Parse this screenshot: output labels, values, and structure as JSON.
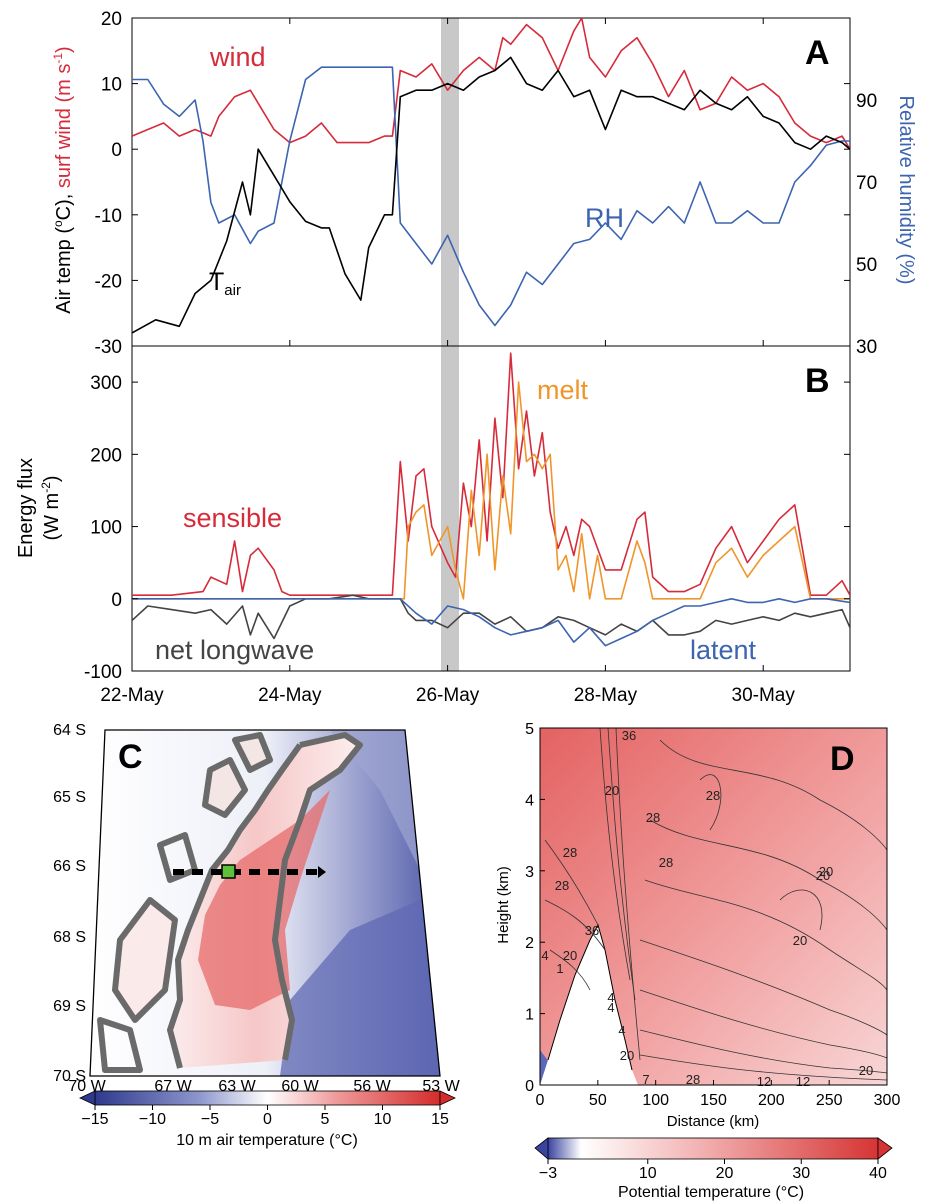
{
  "colors": {
    "wind": "#d62b3a",
    "rh": "#3c64b0",
    "tair": "#000000",
    "sensible": "#d62b3a",
    "melt": "#f0952a",
    "latent": "#3c64b0",
    "longwave": "#444444",
    "shade": "#c8c8c8",
    "warm": "#e04848",
    "cold": "#3a449a",
    "coast": "#6a6a6a"
  },
  "chart_data": [
    {
      "panel": "A",
      "type": "line",
      "ylabel_parts": [
        "Air temp (",
        "o",
        "C), ",
        "surf wind (m s",
        "-1",
        ")"
      ],
      "y2label": "Relative humidity (%)",
      "ylim": [
        -30,
        20
      ],
      "y2lim": [
        30,
        110
      ],
      "yticks": [
        -30,
        -20,
        -10,
        0,
        10,
        20
      ],
      "y2ticks": [
        30,
        50,
        70,
        90
      ],
      "xlim": [
        0,
        9.1
      ],
      "x_day0": "22-May",
      "shaded_span_days": [
        3.9,
        4.1
      ],
      "annotations": [
        {
          "text": "wind",
          "color_key": "wind"
        },
        {
          "text": "RH",
          "color_key": "rh"
        },
        {
          "text": "T",
          "sub": "air",
          "color_key": "tair"
        }
      ],
      "series": [
        {
          "name": "wind",
          "axis": "left",
          "color_key": "wind",
          "x": [
            0,
            0.2,
            0.4,
            0.6,
            0.8,
            1.0,
            1.1,
            1.3,
            1.5,
            1.6,
            1.8,
            2.0,
            2.2,
            2.4,
            2.6,
            2.8,
            3.0,
            3.2,
            3.3,
            3.4,
            3.6,
            3.8,
            4.0,
            4.2,
            4.4,
            4.6,
            4.7,
            4.8,
            5.0,
            5.2,
            5.4,
            5.6,
            5.7,
            5.8,
            6.0,
            6.2,
            6.4,
            6.6,
            6.8,
            7.0,
            7.2,
            7.4,
            7.6,
            7.8,
            8.0,
            8.2,
            8.4,
            8.6,
            8.8,
            9.0,
            9.1
          ],
          "values": [
            2,
            3,
            4,
            2,
            3,
            2,
            5,
            8,
            9,
            7,
            3,
            1,
            2,
            4,
            1,
            1,
            1,
            2,
            2,
            12,
            11,
            13,
            9,
            12,
            14,
            12,
            17,
            16,
            19,
            17,
            12,
            18,
            20,
            14,
            11,
            15,
            17,
            13,
            8,
            12,
            6,
            7,
            11,
            9,
            10,
            8,
            4,
            2,
            1,
            2,
            0
          ]
        },
        {
          "name": "RH",
          "axis": "right",
          "color_key": "rh",
          "x": [
            0,
            0.2,
            0.4,
            0.6,
            0.8,
            0.9,
            1.0,
            1.1,
            1.3,
            1.5,
            1.6,
            1.8,
            2.0,
            2.2,
            2.4,
            2.6,
            2.8,
            3.0,
            3.2,
            3.3,
            3.4,
            3.6,
            3.8,
            4.0,
            4.2,
            4.4,
            4.6,
            4.8,
            5.0,
            5.2,
            5.4,
            5.6,
            5.8,
            6.0,
            6.2,
            6.4,
            6.6,
            6.8,
            7.0,
            7.2,
            7.4,
            7.6,
            7.8,
            8.0,
            8.2,
            8.4,
            8.6,
            8.8,
            9.0,
            9.1
          ],
          "values": [
            95,
            95,
            89,
            86,
            90,
            80,
            65,
            60,
            62,
            55,
            58,
            60,
            80,
            95,
            98,
            98,
            98,
            98,
            98,
            98,
            60,
            55,
            50,
            57,
            48,
            40,
            35,
            40,
            48,
            45,
            50,
            55,
            56,
            60,
            56,
            63,
            60,
            64,
            60,
            70,
            60,
            60,
            63,
            60,
            60,
            70,
            74,
            79,
            80,
            80
          ]
        },
        {
          "name": "Tair",
          "axis": "left",
          "color_key": "tair",
          "x": [
            0,
            0.3,
            0.6,
            0.8,
            1.0,
            1.2,
            1.4,
            1.5,
            1.6,
            1.8,
            2.0,
            2.2,
            2.4,
            2.5,
            2.7,
            2.9,
            3.0,
            3.2,
            3.3,
            3.4,
            3.6,
            3.8,
            4.0,
            4.2,
            4.4,
            4.6,
            4.8,
            5.0,
            5.2,
            5.4,
            5.6,
            5.8,
            6.0,
            6.2,
            6.4,
            6.6,
            6.8,
            7.0,
            7.2,
            7.4,
            7.6,
            7.8,
            8.0,
            8.2,
            8.4,
            8.6,
            8.8,
            9.0,
            9.1
          ],
          "values": [
            -28,
            -26,
            -27,
            -22,
            -20,
            -14,
            -5,
            -10,
            0,
            -4,
            -8,
            -11,
            -12,
            -12,
            -19,
            -23,
            -15,
            -10,
            -10,
            8,
            9,
            9,
            10,
            9,
            11,
            12,
            14,
            10,
            9,
            12,
            8,
            9,
            3,
            9,
            8,
            8,
            7,
            6,
            9,
            7,
            6,
            8,
            5,
            4,
            1,
            0,
            2,
            1,
            0
          ]
        }
      ]
    },
    {
      "panel": "B",
      "type": "line",
      "ylabel": "Energy flux",
      "ylabel_unit_parts": [
        "(W m",
        "-2",
        ")"
      ],
      "ylim": [
        -100,
        350
      ],
      "yticks": [
        -100,
        0,
        100,
        200,
        300
      ],
      "xlim": [
        0,
        9.1
      ],
      "xtick_labels": [
        "22-May",
        "24-May",
        "26-May",
        "28-May",
        "30-May"
      ],
      "xtick_positions_days": [
        0,
        2,
        4,
        6,
        8
      ],
      "shaded_span_days": [
        3.9,
        4.1
      ],
      "annotations": [
        {
          "text": "sensible",
          "color_key": "sensible"
        },
        {
          "text": "melt",
          "color_key": "melt"
        },
        {
          "text": "net longwave",
          "color_key": "longwave"
        },
        {
          "text": "latent",
          "color_key": "latent"
        }
      ],
      "series": [
        {
          "name": "sensible",
          "color_key": "sensible",
          "x": [
            0,
            0.5,
            0.9,
            1.0,
            1.2,
            1.3,
            1.4,
            1.5,
            1.6,
            1.8,
            1.9,
            2.0,
            2.2,
            3.0,
            3.3,
            3.4,
            3.5,
            3.6,
            3.7,
            3.8,
            4.0,
            4.1,
            4.2,
            4.3,
            4.4,
            4.5,
            4.6,
            4.7,
            4.8,
            4.9,
            5.0,
            5.1,
            5.2,
            5.3,
            5.4,
            5.5,
            5.6,
            5.7,
            5.8,
            6.0,
            6.2,
            6.4,
            6.5,
            6.6,
            6.8,
            7.0,
            7.2,
            7.4,
            7.6,
            7.8,
            8.0,
            8.2,
            8.4,
            8.6,
            8.8,
            9.0,
            9.1
          ],
          "values": [
            5,
            5,
            10,
            30,
            20,
            80,
            10,
            60,
            70,
            40,
            10,
            5,
            5,
            5,
            5,
            190,
            80,
            170,
            180,
            100,
            50,
            30,
            160,
            100,
            220,
            80,
            250,
            140,
            340,
            180,
            260,
            170,
            230,
            120,
            70,
            100,
            60,
            110,
            100,
            40,
            40,
            110,
            120,
            30,
            10,
            10,
            20,
            70,
            100,
            50,
            80,
            110,
            130,
            5,
            5,
            25,
            5
          ]
        },
        {
          "name": "melt",
          "color_key": "melt",
          "x": [
            0,
            3.45,
            3.5,
            3.6,
            3.7,
            3.8,
            4.0,
            4.1,
            4.2,
            4.3,
            4.4,
            4.5,
            4.6,
            4.7,
            4.8,
            4.9,
            5.0,
            5.1,
            5.2,
            5.3,
            5.4,
            5.5,
            5.6,
            5.7,
            5.8,
            5.9,
            6.0,
            6.2,
            6.4,
            6.5,
            6.6,
            6.8,
            7.0,
            7.2,
            7.4,
            7.6,
            7.8,
            8.0,
            8.2,
            8.4,
            8.6,
            9.1
          ],
          "values": [
            0,
            0,
            100,
            120,
            130,
            60,
            100,
            40,
            0,
            150,
            60,
            200,
            40,
            170,
            90,
            300,
            190,
            200,
            180,
            200,
            40,
            60,
            10,
            90,
            0,
            60,
            0,
            0,
            80,
            50,
            0,
            0,
            0,
            0,
            50,
            70,
            30,
            60,
            80,
            100,
            0,
            0
          ]
        },
        {
          "name": "latent",
          "color_key": "latent",
          "x": [
            0,
            3.4,
            3.6,
            3.8,
            4.0,
            4.2,
            4.4,
            4.6,
            4.8,
            5.0,
            5.2,
            5.4,
            5.6,
            5.8,
            6.0,
            6.2,
            6.4,
            6.6,
            6.8,
            7.0,
            7.2,
            7.4,
            7.6,
            7.8,
            8.0,
            8.2,
            8.4,
            8.6,
            8.8,
            9.1
          ],
          "values": [
            0,
            0,
            -20,
            -35,
            -10,
            -15,
            -25,
            -40,
            -50,
            -45,
            -40,
            -30,
            -60,
            -40,
            -65,
            -55,
            -45,
            -30,
            -20,
            -10,
            -10,
            -5,
            0,
            -5,
            -5,
            0,
            -5,
            0,
            0,
            -5
          ]
        },
        {
          "name": "net longwave",
          "color_key": "longwave",
          "x": [
            0,
            0.2,
            0.5,
            0.8,
            1.0,
            1.2,
            1.4,
            1.5,
            1.6,
            1.8,
            2.0,
            2.2,
            2.5,
            2.8,
            3.0,
            3.4,
            3.5,
            3.6,
            3.8,
            4.0,
            4.2,
            4.4,
            4.6,
            4.8,
            5.0,
            5.2,
            5.4,
            5.6,
            5.8,
            6.0,
            6.2,
            6.4,
            6.6,
            6.8,
            7.0,
            7.2,
            7.4,
            7.6,
            7.8,
            8.0,
            8.2,
            8.4,
            8.6,
            8.8,
            9.0,
            9.1
          ],
          "values": [
            -30,
            -10,
            -15,
            -20,
            -15,
            -35,
            -10,
            -50,
            -20,
            -55,
            -10,
            0,
            0,
            5,
            0,
            0,
            -20,
            -30,
            -30,
            -40,
            -20,
            -20,
            -35,
            -25,
            -45,
            -40,
            -25,
            -30,
            -40,
            -50,
            -35,
            -45,
            -30,
            -50,
            -50,
            -45,
            -30,
            -35,
            -30,
            -25,
            -30,
            -20,
            -25,
            -20,
            -15,
            -40
          ]
        }
      ]
    },
    {
      "panel": "C",
      "type": "heatmap",
      "yticks": [
        "64 S",
        "65 S",
        "66 S",
        "68 S",
        "69 S",
        "70 S"
      ],
      "xticks": [
        "70 W",
        "67 W",
        "63 W",
        "60 W",
        "56 W",
        "53 W"
      ],
      "colorbar_label": "10 m air temperature (°C)",
      "colorbar_ticks": [
        "−15",
        "−10",
        "−5",
        "0",
        "5",
        "10",
        "15"
      ],
      "range": [
        -15,
        15
      ]
    },
    {
      "panel": "D",
      "type": "heatmap",
      "xlabel": "Distance (km)",
      "ylabel": "Height (km)",
      "xticks": [
        "0",
        "50",
        "100",
        "150",
        "200",
        "250",
        "300"
      ],
      "yticks": [
        "0",
        "1",
        "2",
        "3",
        "4",
        "5"
      ],
      "contour_labels": [
        "36",
        "20",
        "28",
        "28",
        "20",
        "20",
        "28",
        "28",
        "36",
        "28",
        "4",
        "4",
        "20",
        "4",
        "1",
        "20",
        "4",
        "20",
        "7",
        "28",
        "12",
        "12",
        "20"
      ],
      "colorbar_label": "Potential temperature (°C)",
      "colorbar_ticks": [
        "−3",
        "10",
        "20",
        "30",
        "40"
      ],
      "range": [
        -3,
        40
      ]
    }
  ]
}
